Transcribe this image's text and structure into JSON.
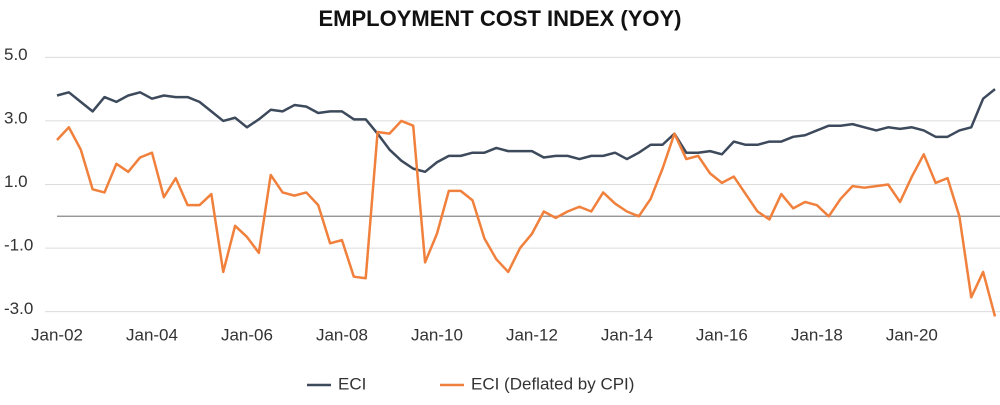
{
  "chart_data": {
    "type": "line",
    "title": "EMPLOYMENT COST INDEX (YOY)",
    "categories": [
      "Jan-02",
      null,
      null,
      null,
      null,
      null,
      null,
      null,
      "Jan-04",
      null,
      null,
      null,
      null,
      null,
      null,
      null,
      "Jan-06",
      null,
      null,
      null,
      null,
      null,
      null,
      null,
      "Jan-08",
      null,
      null,
      null,
      null,
      null,
      null,
      null,
      "Jan-10",
      null,
      null,
      null,
      null,
      null,
      null,
      null,
      "Jan-12",
      null,
      null,
      null,
      null,
      null,
      null,
      null,
      "Jan-14",
      null,
      null,
      null,
      null,
      null,
      null,
      null,
      "Jan-16",
      null,
      null,
      null,
      null,
      null,
      null,
      null,
      "Jan-18",
      null,
      null,
      null,
      null,
      null,
      null,
      null,
      "Jan-20",
      null,
      null,
      null,
      null,
      null,
      null,
      null
    ],
    "series": [
      {
        "name": "ECI",
        "color": "#3d4a5c",
        "values": [
          3.8,
          3.9,
          3.6,
          3.3,
          3.75,
          3.6,
          3.8,
          3.9,
          3.7,
          3.8,
          3.75,
          3.75,
          3.6,
          3.3,
          3.0,
          3.1,
          2.8,
          3.05,
          3.35,
          3.3,
          3.5,
          3.45,
          3.25,
          3.3,
          3.3,
          3.05,
          3.05,
          2.6,
          2.1,
          1.75,
          1.5,
          1.4,
          1.7,
          1.9,
          1.9,
          2.0,
          2.0,
          2.15,
          2.05,
          2.05,
          2.05,
          1.85,
          1.9,
          1.9,
          1.8,
          1.9,
          1.9,
          2.0,
          1.8,
          2.0,
          2.25,
          2.25,
          2.6,
          2.0,
          2.0,
          2.05,
          1.95,
          2.35,
          2.25,
          2.25,
          2.35,
          2.35,
          2.5,
          2.55,
          2.7,
          2.85,
          2.85,
          2.9,
          2.8,
          2.7,
          2.8,
          2.75,
          2.8,
          2.7,
          2.5,
          2.5,
          2.7,
          2.8,
          3.7,
          4.0
        ]
      },
      {
        "name": "ECI (Deflated by CPI)",
        "color": "#f0803c",
        "values": [
          2.4,
          2.8,
          2.1,
          0.85,
          0.75,
          1.65,
          1.4,
          1.85,
          2.0,
          0.6,
          1.2,
          0.35,
          0.35,
          0.7,
          -1.75,
          -0.3,
          -0.65,
          -1.15,
          1.3,
          0.75,
          0.65,
          0.75,
          0.35,
          -0.85,
          -0.75,
          -1.9,
          -1.95,
          2.65,
          2.6,
          3.0,
          2.85,
          -1.45,
          -0.55,
          0.8,
          0.8,
          0.5,
          -0.7,
          -1.35,
          -1.75,
          -1.0,
          -0.55,
          0.15,
          -0.05,
          0.15,
          0.3,
          0.15,
          0.75,
          0.4,
          0.15,
          0.0,
          0.55,
          1.5,
          2.6,
          1.8,
          1.9,
          1.35,
          1.05,
          1.25,
          0.7,
          0.15,
          -0.1,
          0.7,
          0.25,
          0.45,
          0.35,
          0.0,
          0.55,
          0.95,
          0.9,
          0.95,
          1.0,
          0.45,
          1.25,
          1.95,
          1.05,
          1.2,
          0.0,
          -2.55,
          -1.75,
          -3.15
        ]
      }
    ],
    "ylim": [
      -3.2,
      5.2
    ],
    "yticks": [
      {
        "value": 5,
        "label": "5.0"
      },
      {
        "value": 3,
        "label": "3.0"
      },
      {
        "value": 1,
        "label": "1.0"
      },
      {
        "value": -1,
        "label": "-1.0"
      },
      {
        "value": -3,
        "label": "-3.0"
      }
    ],
    "grid": true,
    "legend": "bottom"
  }
}
